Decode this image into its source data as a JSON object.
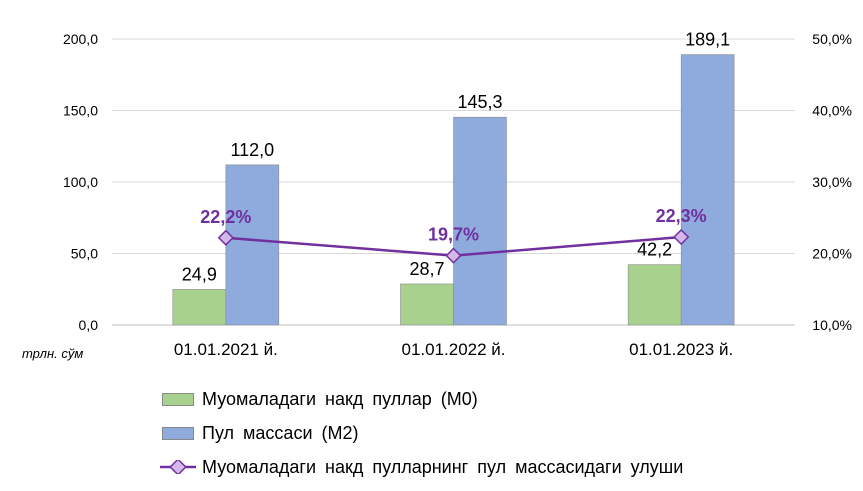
{
  "chart_data": {
    "type": "bar",
    "categories": [
      "01.01.2021 й.",
      "01.01.2022 й.",
      "01.01.2023 й."
    ],
    "unit_label": "трлн. сўм",
    "series": [
      {
        "name": "Муомаладаги  накд пуллар  (М0)",
        "kind": "bar",
        "axis": "left",
        "color": "#a9d18e",
        "values": [
          24.9,
          28.7,
          42.2
        ],
        "labels": [
          "24,9",
          "28,7",
          "42,2"
        ]
      },
      {
        "name": "Пул  массаси (М2)",
        "kind": "bar",
        "axis": "left",
        "color": "#8faadc",
        "values": [
          112.0,
          145.3,
          189.1
        ],
        "labels": [
          "112,0",
          "145,3",
          "189,1"
        ]
      },
      {
        "name": "Муомаладаги  накд пулларнинг  пул  массасидаги  улуши",
        "kind": "line",
        "axis": "right",
        "color": "#7030a0",
        "values": [
          22.2,
          19.7,
          22.3
        ],
        "labels": [
          "22,2%",
          "19,7%",
          "22,3%"
        ]
      }
    ],
    "y_left": {
      "min": 0,
      "max": 200,
      "ticks": [
        0,
        50,
        100,
        150,
        200
      ],
      "tick_labels": [
        "0,0",
        "50,0",
        "100,0",
        "150,0",
        "200,0"
      ]
    },
    "y_right": {
      "min": 10,
      "max": 50,
      "ticks": [
        10,
        20,
        30,
        40,
        50
      ],
      "tick_labels": [
        "10,0%",
        "20,0%",
        "30,0%",
        "40,0%",
        "50,0%"
      ]
    },
    "grid": true,
    "legend_position": "bottom-left"
  }
}
